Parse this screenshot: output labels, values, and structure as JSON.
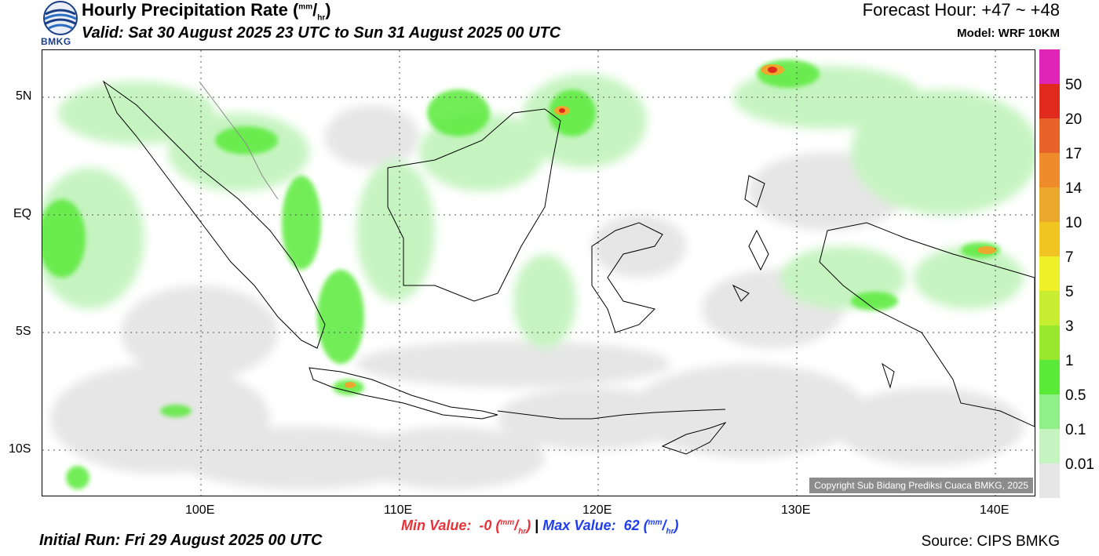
{
  "header": {
    "title": "Hourly Precipitation Rate",
    "unit_num": "mm",
    "unit_den": "hr",
    "valid": "Valid: Sat 30 August 2025 23 UTC to Sun 31 August 2025 00 UTC",
    "forecast_hour": "Forecast Hour: +47 ~ +48",
    "model": "Model: WRF 10KM",
    "logo_text": "BMKG"
  },
  "map": {
    "lat_labels": [
      "5N",
      "EQ",
      "5S",
      "10S"
    ],
    "lon_labels": [
      "100E",
      "110E",
      "120E",
      "130E",
      "140E"
    ],
    "copyright": "Copyright Sub Bidang Prediksi Cuaca BMKG, 2025"
  },
  "colorbar": {
    "labels": [
      "50",
      "20",
      "17",
      "14",
      "10",
      "7",
      "5",
      "3",
      "1",
      "0.5",
      "0.1",
      "0.01"
    ],
    "colors": [
      "#e024b8",
      "#e02a1e",
      "#e8632a",
      "#ee8c2b",
      "#eca82c",
      "#f0c521",
      "#eef02a",
      "#c8ee32",
      "#99e82e",
      "#5aea3a",
      "#8ff08a",
      "#c6f4c1",
      "#e6e6e6"
    ]
  },
  "footer": {
    "min_label": "Min Value:",
    "min_value": "-0",
    "max_label": "Max Value:",
    "max_value": "62",
    "separator": "|",
    "initial_run": "Initial Run: Fri 29 August 2025 00 UTC",
    "source": "Source: CIPS BMKG"
  },
  "colors": {
    "min_color": "#e8323a",
    "max_color": "#1f3ef0",
    "land_outline": "#000000",
    "light_rain": "#c6f4c1",
    "trace_rain": "#e6e6e6"
  }
}
